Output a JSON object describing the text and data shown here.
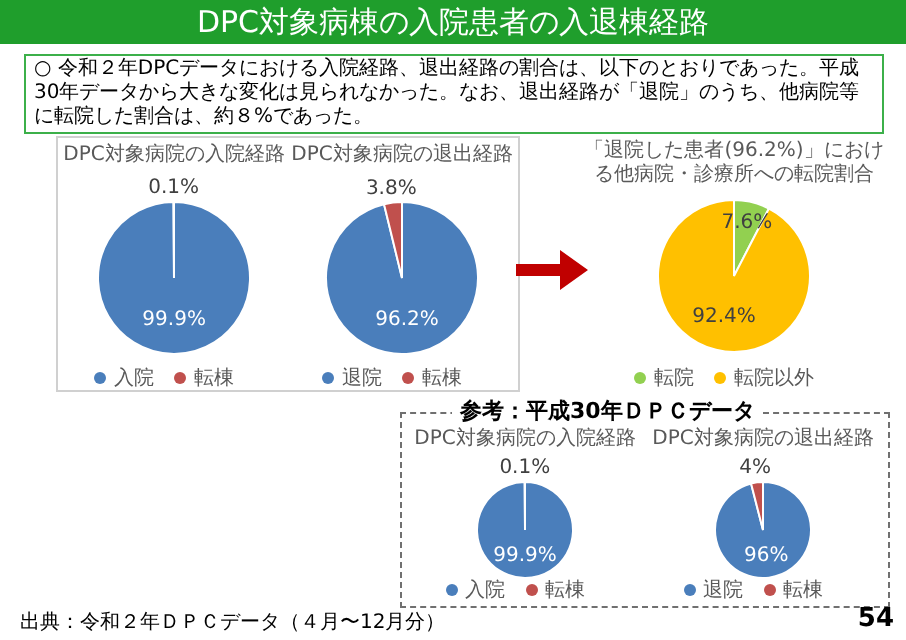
{
  "chart_data": [
    {
      "type": "pie",
      "title": "DPC対象病院の入院経路",
      "categories": [
        "入院",
        "転棟"
      ],
      "values": [
        99.9,
        0.1
      ],
      "colors": [
        "#4a7ebb",
        "#c0504d"
      ],
      "value_labels": [
        "99.9%",
        "0.1%"
      ],
      "legend": "bottom",
      "annotations": [
        "DPC対象病棟の入院患者の入退棟経路",
        "○ 令和２年DPCデータにおける入院経路、退出経路の割合は、以下のとおりであった。平成30年データから大きな変化は見られなかった。なお、退出経路が「退院」のうち、他病院等に転院した割合は、約８%であった。",
        "出典：令和２年ＤＰＣデータ（４月〜12月分）",
        "54"
      ]
    },
    {
      "type": "pie",
      "title": "DPC対象病院の退出経路",
      "categories": [
        "退院",
        "転棟"
      ],
      "values": [
        96.2,
        3.8
      ],
      "colors": [
        "#4a7ebb",
        "#c0504d"
      ],
      "value_labels": [
        "96.2%",
        "3.8%"
      ],
      "legend": "bottom"
    },
    {
      "type": "pie",
      "title": "「退院した患者(96.2%)」における他病院・診療所への転院割合",
      "categories": [
        "転院",
        "転院以外"
      ],
      "values": [
        7.6,
        92.4
      ],
      "colors": [
        "#92d050",
        "#ffc000"
      ],
      "value_labels": [
        "7.6%",
        "92.4%"
      ],
      "legend": "bottom"
    },
    {
      "type": "pie",
      "title": "DPC対象病院の入院経路",
      "categories": [
        "入院",
        "転棟"
      ],
      "values": [
        99.9,
        0.1
      ],
      "colors": [
        "#4a7ebb",
        "#c0504d"
      ],
      "value_labels": [
        "99.9%",
        "0.1%"
      ],
      "legend": "bottom",
      "annotations": [
        "参考：平成30年ＤＰＣデータ"
      ]
    },
    {
      "type": "pie",
      "title": "DPC対象病院の退出経路",
      "categories": [
        "退院",
        "転棟"
      ],
      "values": [
        96,
        4
      ],
      "colors": [
        "#4a7ebb",
        "#c0504d"
      ],
      "value_labels": [
        "96%",
        "4%"
      ],
      "legend": "bottom"
    }
  ]
}
